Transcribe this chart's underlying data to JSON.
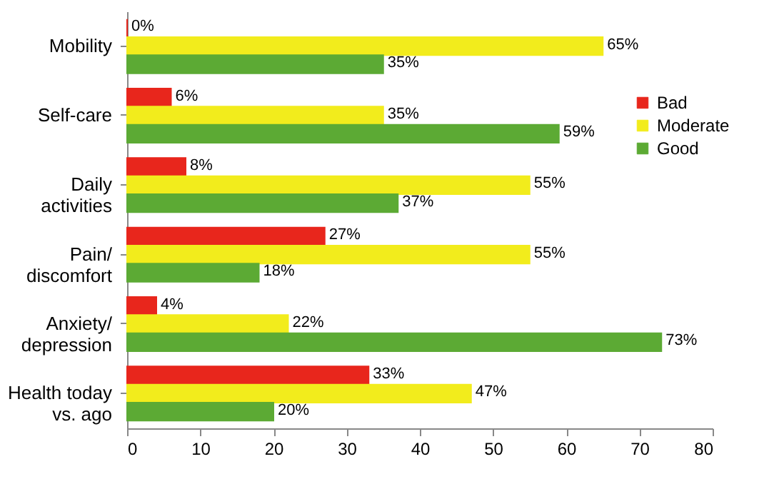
{
  "chart_data": {
    "type": "bar",
    "orientation": "horizontal",
    "categories": [
      "Mobility",
      "Self-care",
      "Daily\nactivities",
      "Pain/\ndiscomfort",
      "Anxiety/\ndepression",
      "Health today\nvs. ago"
    ],
    "series": [
      {
        "name": "Bad",
        "color": "#e8261c",
        "values": [
          0,
          6,
          8,
          27,
          4,
          33
        ],
        "value_labels": [
          "0%",
          "6%",
          "8%",
          "27%",
          "4%",
          "33%"
        ]
      },
      {
        "name": "Moderate",
        "color": "#f2ec1c",
        "values": [
          65,
          35,
          55,
          55,
          22,
          47
        ],
        "value_labels": [
          "65%",
          "35%",
          "55%",
          "55%",
          "22%",
          "47%"
        ]
      },
      {
        "name": "Good",
        "color": "#5caa34",
        "values": [
          35,
          59,
          37,
          18,
          73,
          20
        ],
        "value_labels": [
          "35%",
          "59%",
          "37%",
          "18%",
          "73%",
          "20%"
        ]
      }
    ],
    "xlim": [
      0,
      80
    ],
    "xticks": [
      0,
      10,
      20,
      30,
      40,
      50,
      60,
      70,
      80
    ],
    "grid": false,
    "legend": "top right"
  }
}
